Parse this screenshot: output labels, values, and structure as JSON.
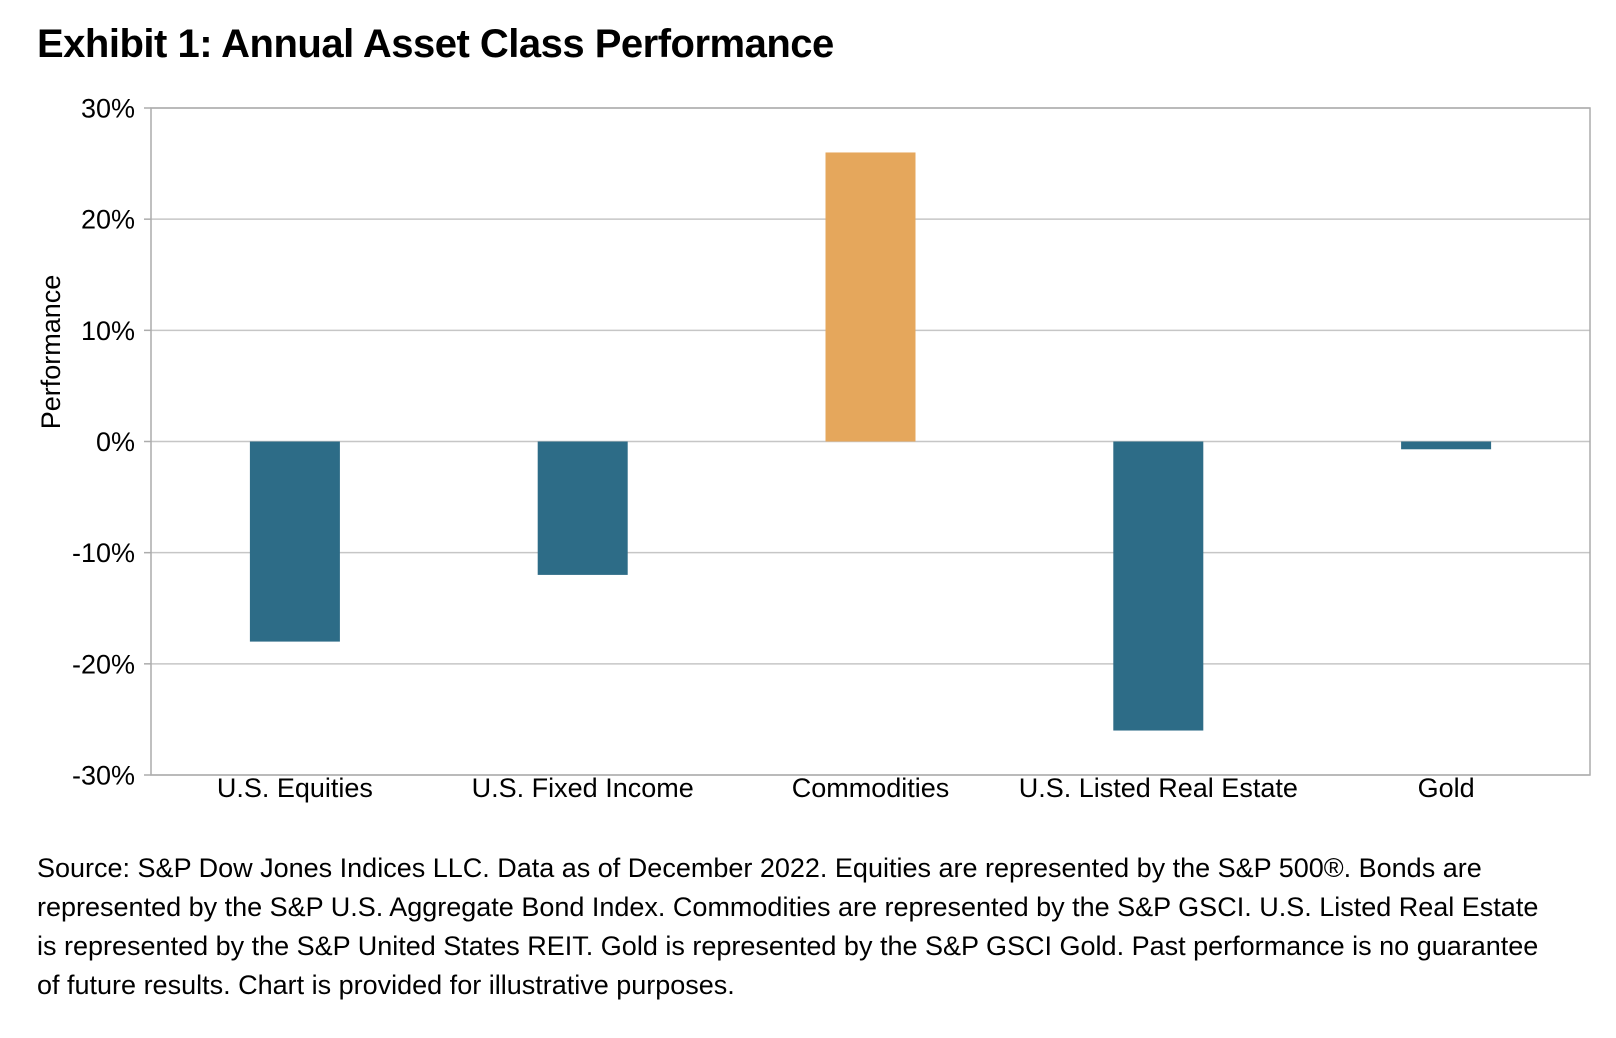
{
  "page": {
    "title": "Exhibit 1: Annual Asset Class Performance",
    "source_note": "Source: S&P Dow Jones Indices LLC. Data as of December 2022. Equities are represented by the S&P 500®. Bonds are represented by the S&P U.S. Aggregate Bond Index. Commodities are represented by the S&P GSCI. U.S. Listed Real Estate is represented by the S&P United States REIT. Gold is represented by the S&P GSCI Gold. Past performance is no guarantee of future results. Chart is provided for illustrative purposes."
  },
  "chart_data": {
    "type": "bar",
    "title": "Exhibit 1: Annual Asset Class Performance",
    "categories": [
      "U.S. Equities",
      "U.S. Fixed Income",
      "Commodities",
      "U.S. Listed Real Estate",
      "Gold"
    ],
    "values": [
      -18,
      -12,
      26,
      -26,
      -0.7
    ],
    "bar_colors": [
      "#2D6C87",
      "#2D6C87",
      "#E5A75C",
      "#2D6C87",
      "#2D6C87"
    ],
    "xlabel": "",
    "ylabel": "Performance",
    "ylim": [
      -30,
      30
    ],
    "yticks": [
      30,
      20,
      10,
      0,
      -10,
      -20,
      -30
    ],
    "ytick_labels": [
      "30%",
      "20%",
      "10%",
      "0%",
      "-10%",
      "-20%",
      "-30%"
    ],
    "grid": true,
    "legend": "none",
    "colors": {
      "negative_bar": "#2D6C87",
      "positive_bar": "#E5A75C",
      "gridline": "#C6C6C6",
      "plot_border": "#ACACAC",
      "text": "#000000"
    }
  }
}
